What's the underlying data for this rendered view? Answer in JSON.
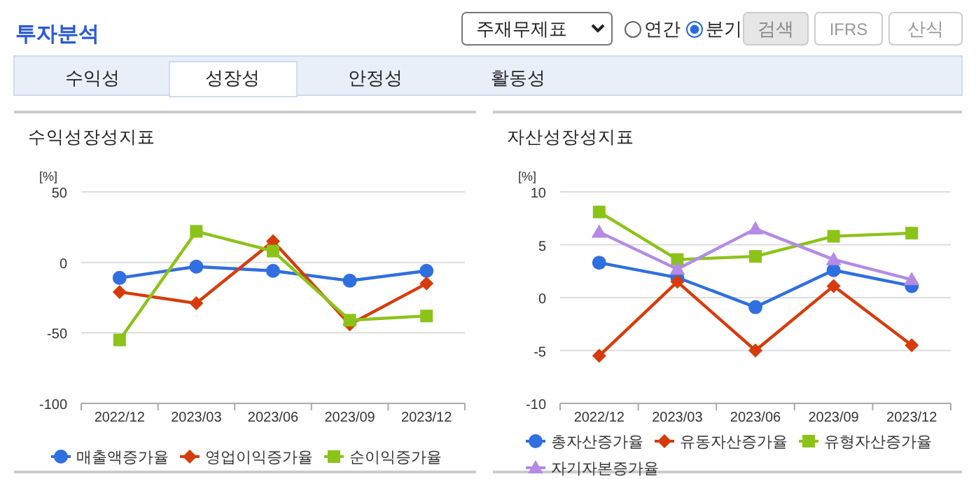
{
  "chart_data": [
    {
      "type": "other",
      "title": "투자분석",
      "annotations": [
        "주재무제표",
        "연간",
        "분기",
        "검색",
        "IFRS",
        "산식",
        "수익성",
        "성장성",
        "안정성",
        "활동성"
      ]
    },
    {
      "type": "line",
      "title": "수익성장성지표",
      "ylabel": "[%]",
      "categories": [
        "2022/12",
        "2023/03",
        "2023/06",
        "2023/09",
        "2023/12"
      ],
      "ylim": [
        -100,
        50
      ],
      "yticks": [
        -100,
        -50,
        0,
        50
      ],
      "grid": "y",
      "legend": "bottom",
      "line_style": "solid",
      "series": [
        {
          "name": "매출액증가율",
          "color": "#2f6fe0",
          "marker": "circle",
          "values": [
            -11,
            -3,
            -6,
            -13,
            -6
          ]
        },
        {
          "name": "영업이익증가율",
          "color": "#d83b0b",
          "marker": "diamond",
          "values": [
            -21,
            -29,
            15,
            -44,
            -15
          ]
        },
        {
          "name": "순이익증가율",
          "color": "#8cc319",
          "marker": "square",
          "values": [
            -55,
            22,
            8,
            -41,
            -38
          ]
        }
      ]
    },
    {
      "type": "line",
      "title": "자산성장성지표",
      "ylabel": "[%]",
      "categories": [
        "2022/12",
        "2023/03",
        "2023/06",
        "2023/09",
        "2023/12"
      ],
      "ylim": [
        -10,
        10
      ],
      "yticks": [
        -10,
        -5,
        0,
        5,
        10
      ],
      "grid": "y",
      "legend": "bottom",
      "line_style": "solid",
      "series": [
        {
          "name": "총자산증가율",
          "color": "#2f6fe0",
          "marker": "circle",
          "values": [
            3.3,
            1.9,
            -0.9,
            2.6,
            1.1
          ]
        },
        {
          "name": "유동자산증가율",
          "color": "#d83b0b",
          "marker": "diamond",
          "values": [
            -5.5,
            1.5,
            -5.0,
            1.1,
            -4.5
          ]
        },
        {
          "name": "유형자산증가율",
          "color": "#8cc319",
          "marker": "square",
          "values": [
            8.1,
            3.6,
            3.9,
            5.8,
            6.1
          ]
        },
        {
          "name": "자기자본증가율",
          "color": "#b48be6",
          "marker": "triangle",
          "values": [
            6.2,
            2.7,
            6.5,
            3.6,
            1.7
          ]
        }
      ]
    }
  ]
}
